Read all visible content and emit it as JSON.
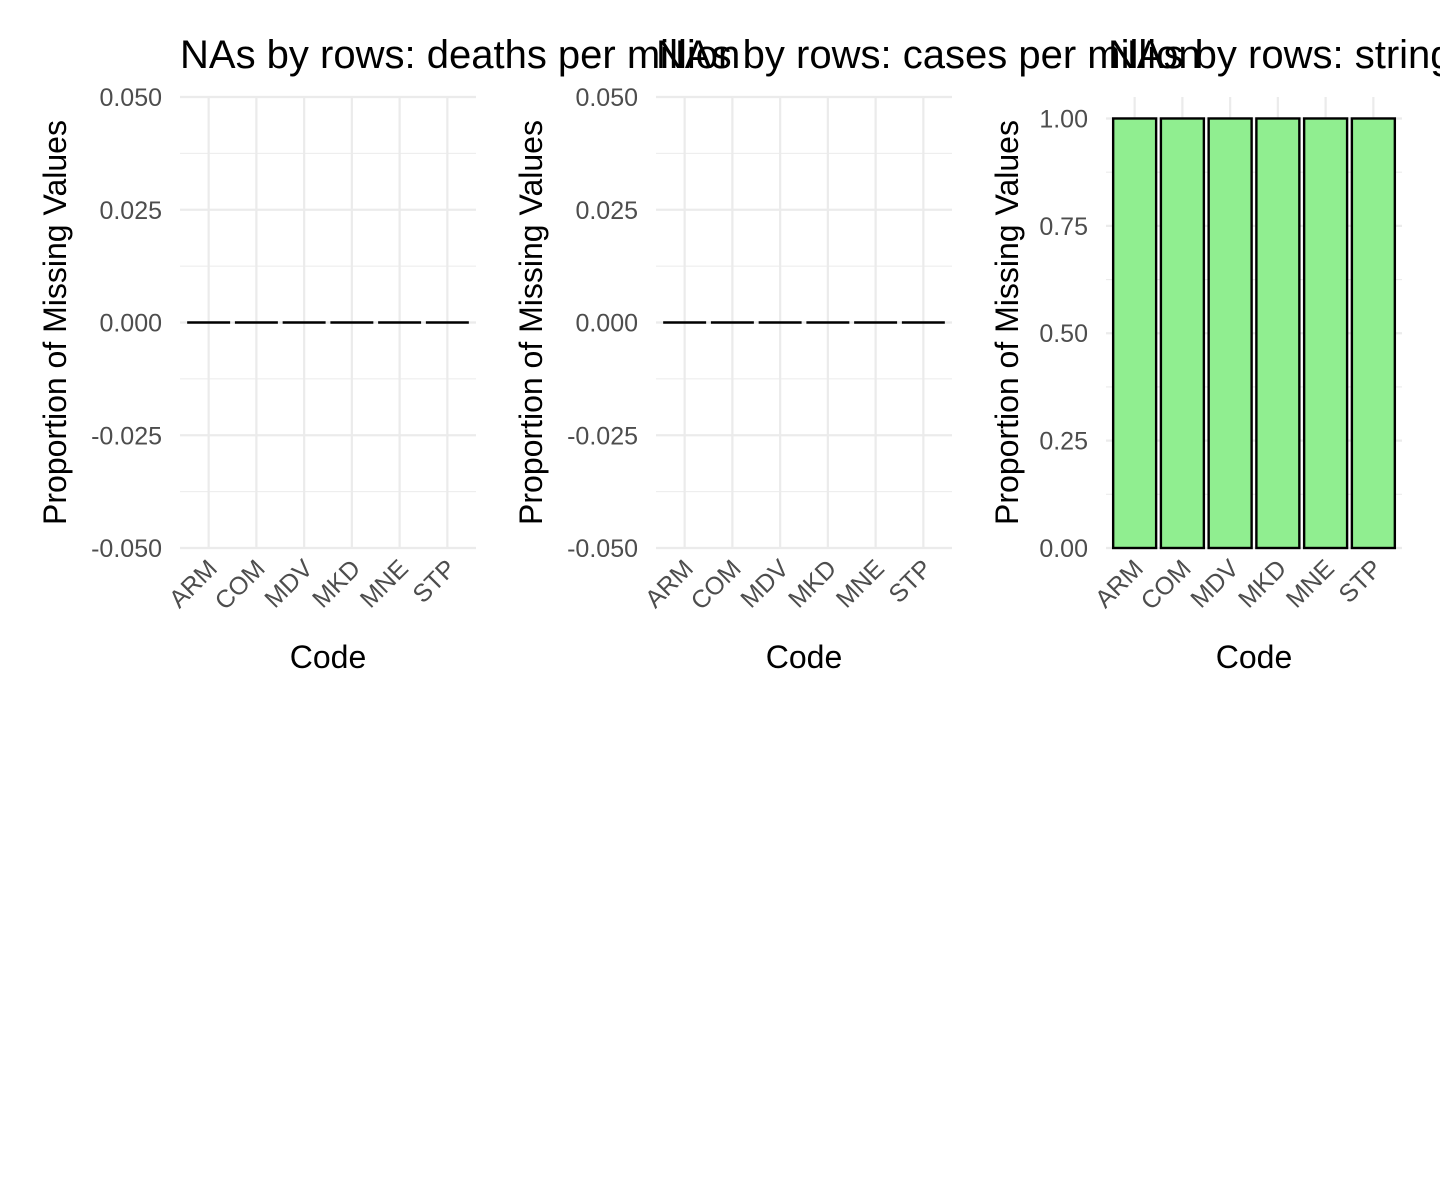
{
  "chart_data": [
    {
      "type": "bar",
      "title": "NAs by rows: deaths per million",
      "xlabel": "Code",
      "ylabel": "Proportion of Missing Values",
      "categories": [
        "ARM",
        "COM",
        "MDV",
        "MKD",
        "MNE",
        "STP"
      ],
      "values": [
        0,
        0,
        0,
        0,
        0,
        0
      ],
      "ylim": [
        -0.05,
        0.05
      ],
      "yticks": [
        "-0.050",
        "-0.025",
        "0.000",
        "0.025",
        "0.050"
      ],
      "ytick_values": [
        -0.05,
        -0.025,
        0,
        0.025,
        0.05
      ],
      "bar_color": "#90ee90",
      "bar_outline": "#000000",
      "grid": true
    },
    {
      "type": "bar",
      "title": "NAs by rows: cases per million",
      "xlabel": "Code",
      "ylabel": "Proportion of Missing Values",
      "categories": [
        "ARM",
        "COM",
        "MDV",
        "MKD",
        "MNE",
        "STP"
      ],
      "values": [
        0,
        0,
        0,
        0,
        0,
        0
      ],
      "ylim": [
        -0.05,
        0.05
      ],
      "yticks": [
        "-0.050",
        "-0.025",
        "0.000",
        "0.025",
        "0.050"
      ],
      "ytick_values": [
        -0.05,
        -0.025,
        0,
        0.025,
        0.05
      ],
      "bar_color": "#90ee90",
      "bar_outline": "#000000",
      "grid": true
    },
    {
      "type": "bar",
      "title": "NAs by rows: stringency",
      "xlabel": "Code",
      "ylabel": "Proportion of Missing Values",
      "categories": [
        "ARM",
        "COM",
        "MDV",
        "MKD",
        "MNE",
        "STP"
      ],
      "values": [
        1,
        1,
        1,
        1,
        1,
        1
      ],
      "ylim": [
        0,
        1.05
      ],
      "yticks": [
        "0.00",
        "0.25",
        "0.50",
        "0.75",
        "1.00"
      ],
      "ytick_values": [
        0,
        0.25,
        0.5,
        0.75,
        1.0
      ],
      "bar_color": "#90ee90",
      "bar_outline": "#000000",
      "grid": true
    }
  ]
}
